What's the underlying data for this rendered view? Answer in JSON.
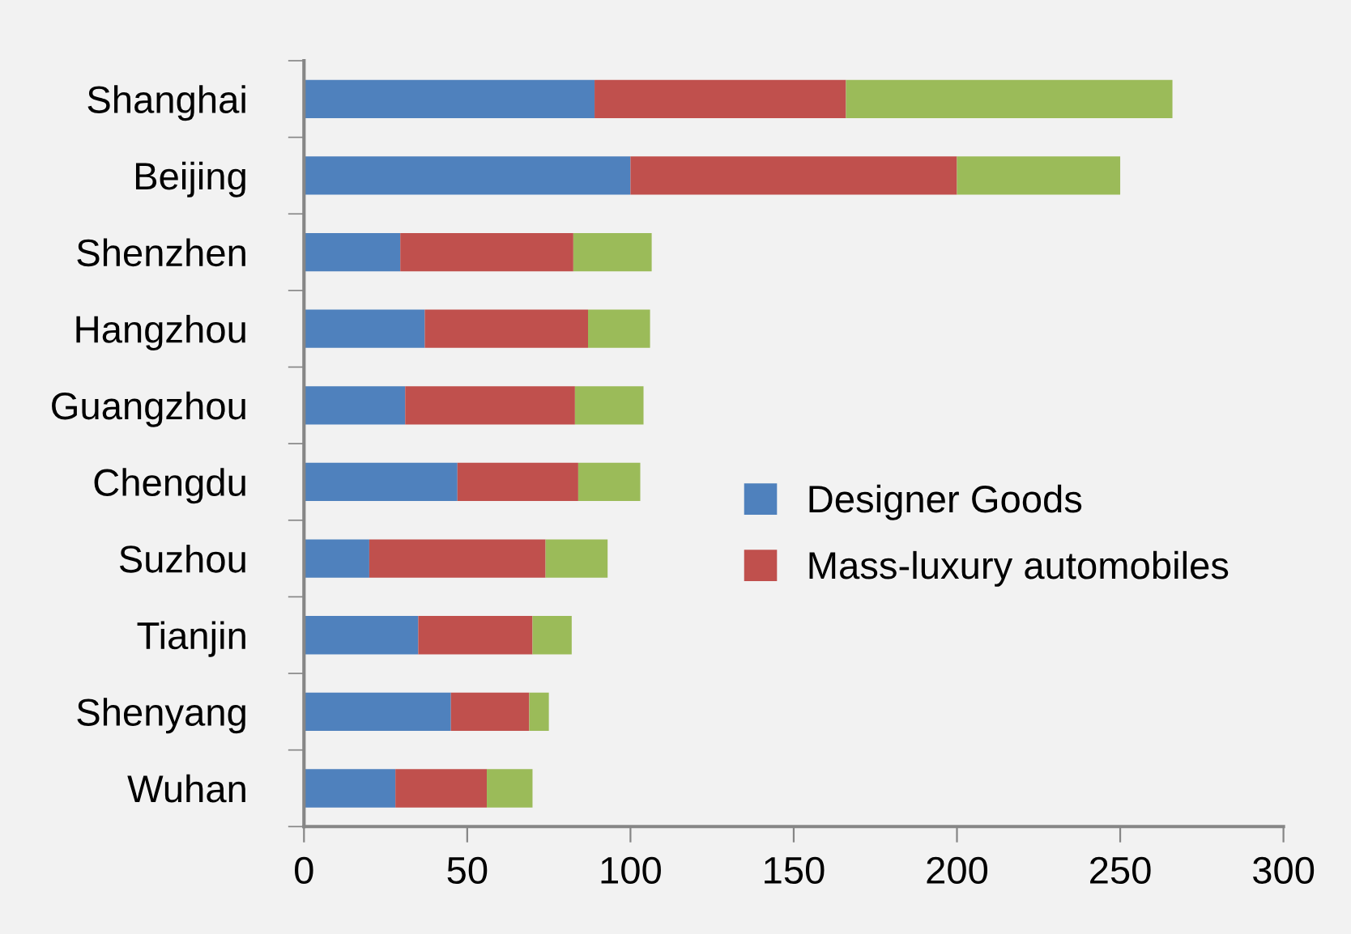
{
  "chart_data": {
    "type": "bar",
    "orientation": "horizontal",
    "stacked": true,
    "categories": [
      "Shanghai",
      "Beijing",
      "Shenzhen",
      "Hangzhou",
      "Guangzhou",
      "Chengdu",
      "Suzhou",
      "Tianjin",
      "Shenyang",
      "Wuhan"
    ],
    "series": [
      {
        "name": "Designer Goods",
        "color": "#4f81bd",
        "values": [
          89,
          100,
          29.5,
          37,
          31,
          47,
          20,
          35,
          45,
          28
        ]
      },
      {
        "name": "Mass-luxury automobiles",
        "color": "#c0504d",
        "values": [
          77,
          100,
          53,
          50,
          52,
          37,
          54,
          35,
          24,
          28
        ]
      },
      {
        "color": "#9bbb59",
        "values": [
          100,
          50,
          24,
          19,
          21,
          19,
          19,
          12,
          6,
          14
        ]
      }
    ],
    "xlim": [
      0,
      300
    ],
    "xticks": [
      0,
      50,
      100,
      150,
      200,
      250,
      300
    ],
    "grid": false,
    "legend": "right"
  }
}
